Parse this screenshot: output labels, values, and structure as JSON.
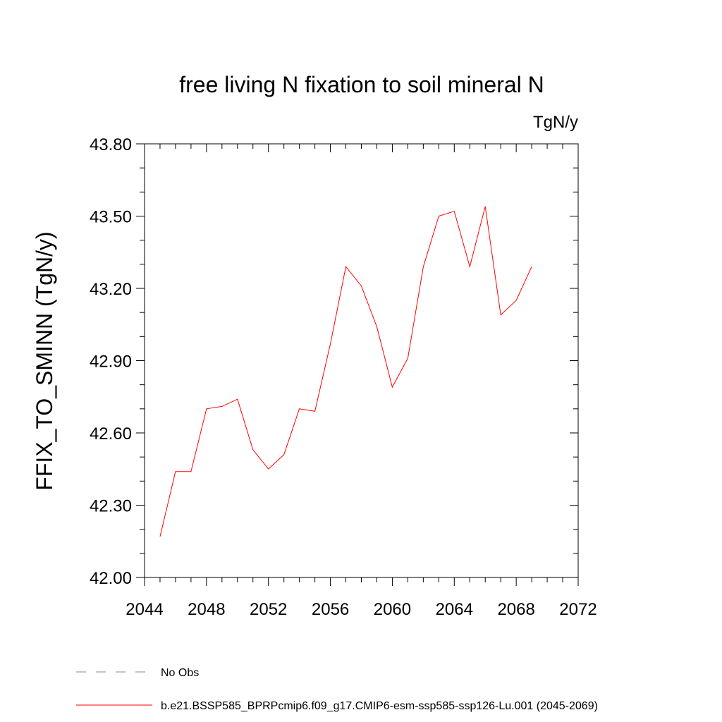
{
  "chart_data": {
    "type": "line",
    "title": "free living N fixation to soil mineral N",
    "units": "TgN/y",
    "xlabel": "",
    "ylabel": "FFIX_TO_SMINN  (TgN/y)",
    "xlim": [
      2044,
      2072
    ],
    "ylim": [
      42.0,
      43.8
    ],
    "xticks": [
      2044,
      2048,
      2052,
      2056,
      2060,
      2064,
      2068,
      2072
    ],
    "xtick_labels": [
      "2044",
      "2048",
      "2052",
      "2056",
      "2060",
      "2064",
      "2068",
      "2072"
    ],
    "yticks": [
      42.0,
      42.3,
      42.6,
      42.9,
      43.2,
      43.5,
      43.8
    ],
    "ytick_labels": [
      "42.00",
      "42.30",
      "42.60",
      "42.90",
      "43.20",
      "43.50",
      "43.80"
    ],
    "grid": false,
    "legend_position": "bottom",
    "series": [
      {
        "name": "b.e21.BSSP585_BPRPcmip6.f09_g17.CMIP6-esm-ssp585-ssp126-Lu.001 (2045-2069)",
        "color": "#ff0000",
        "dash": "solid",
        "x": [
          2045,
          2046,
          2047,
          2048,
          2049,
          2050,
          2051,
          2052,
          2053,
          2054,
          2055,
          2056,
          2057,
          2058,
          2059,
          2060,
          2061,
          2062,
          2063,
          2064,
          2065,
          2066,
          2067,
          2068,
          2069
        ],
        "y": [
          42.17,
          42.44,
          42.44,
          42.7,
          42.71,
          42.74,
          42.53,
          42.45,
          42.51,
          42.7,
          42.69,
          42.97,
          43.29,
          43.21,
          43.04,
          42.79,
          42.91,
          43.29,
          43.5,
          43.52,
          43.29,
          43.54,
          43.09,
          43.15,
          43.29
        ]
      }
    ],
    "legend": [
      {
        "label": "No Obs",
        "color": "#8080c0",
        "dash": "dashed"
      },
      {
        "label": "b.e21.BSSP585_BPRPcmip6.f09_g17.CMIP6-esm-ssp585-ssp126-Lu.001 (2045-2069)",
        "color": "#ff0000",
        "dash": "solid"
      }
    ]
  }
}
